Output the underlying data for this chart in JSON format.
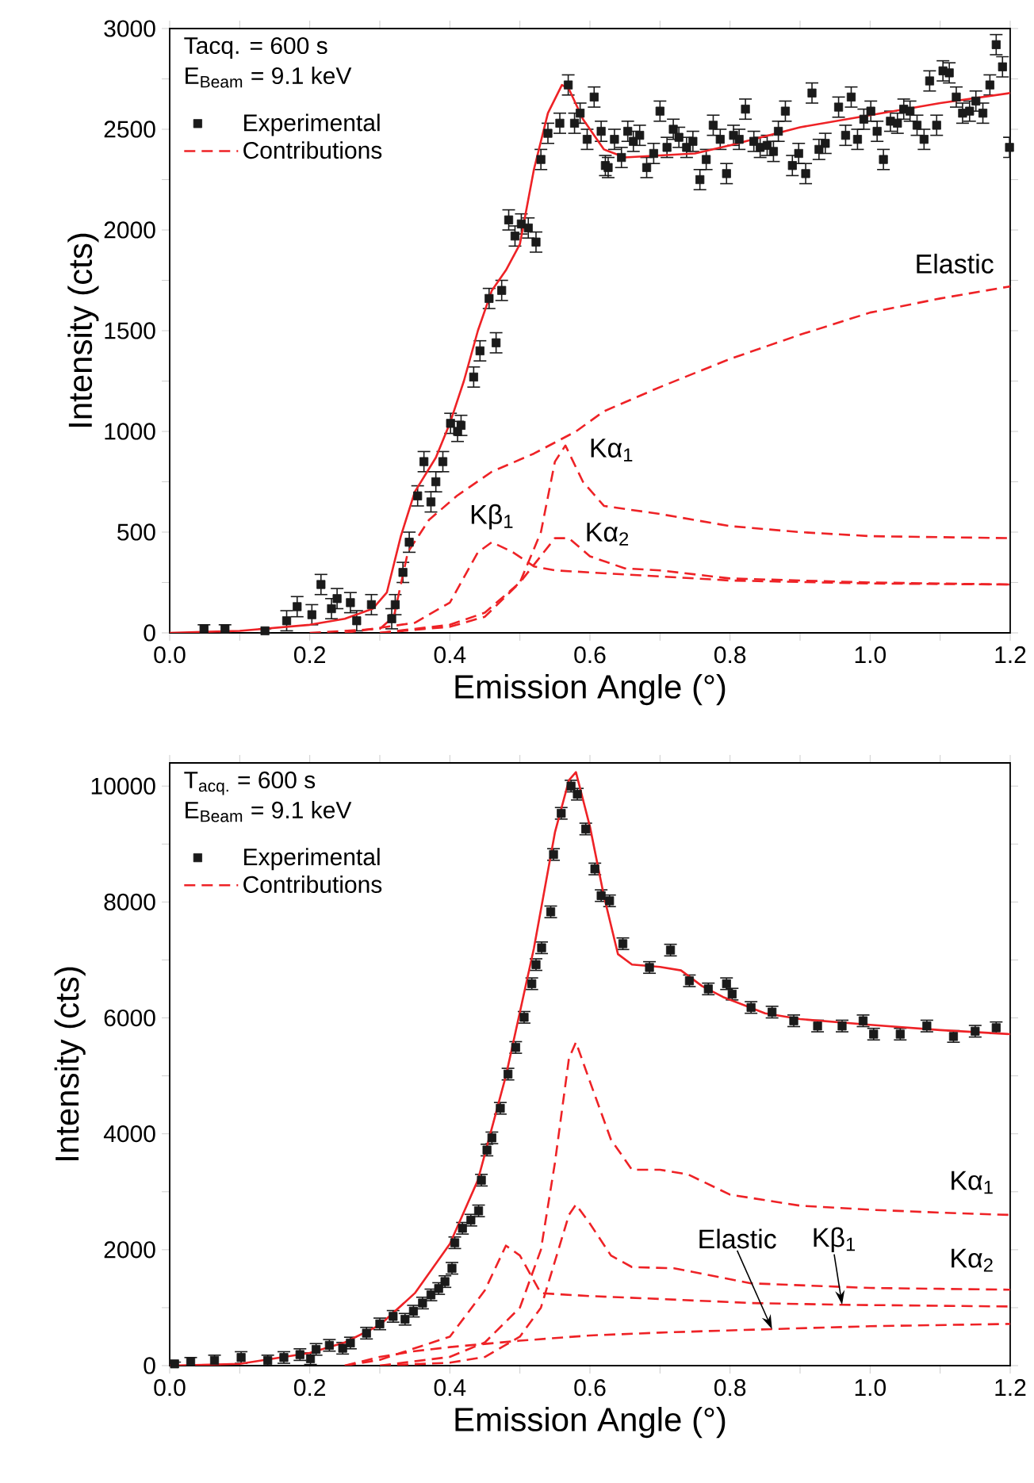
{
  "chart_data": [
    {
      "type": "line",
      "xlabel": "Emission Angle (°)",
      "ylabel": "Intensity (cts)",
      "xlim": [
        0,
        1.2
      ],
      "ylim": [
        0,
        3000
      ],
      "xticks": [
        {
          "value": 0,
          "label": "0.0"
        },
        {
          "value": 0.1,
          "label": null
        },
        {
          "value": 0.2,
          "label": "0.2"
        },
        {
          "value": 0.3,
          "label": null
        },
        {
          "value": 0.4,
          "label": "0.4"
        },
        {
          "value": 0.5,
          "label": null
        },
        {
          "value": 0.6,
          "label": "0.6"
        },
        {
          "value": 0.7,
          "label": null
        },
        {
          "value": 0.8,
          "label": "0.8"
        },
        {
          "value": 0.9,
          "label": null
        },
        {
          "value": 1.0,
          "label": "1.0"
        },
        {
          "value": 1.1,
          "label": null
        },
        {
          "value": 1.2,
          "label": "1.2"
        }
      ],
      "yticks": [
        0,
        {
          "value": 250,
          "label": null
        },
        500,
        {
          "value": 750,
          "label": null
        },
        1000,
        {
          "value": 1250,
          "label": null
        },
        1500,
        {
          "value": 1750,
          "label": null
        },
        2000,
        {
          "value": 2250,
          "label": null
        },
        2500,
        {
          "value": 2750,
          "label": null
        },
        3000
      ],
      "legend": "top left",
      "annotations": [
        "Tacq. = 600 s",
        "E$_{Beam}$ = 9.1 keV",
        {
          "text": "Elastic",
          "x": 1.1,
          "y": 1660
        },
        {
          "text": "Kα$_{1}$",
          "x": 0.59,
          "y": 750
        },
        {
          "text": "Kβ$_{1}$",
          "x": 0.46,
          "y": 450
        },
        {
          "text": "Kα$_{2}$",
          "x": 0.6,
          "y": 380
        }
      ],
      "series": [
        {
          "name": "Experimental",
          "type": "scatter",
          "marker": "square",
          "color": "#1a1a1a",
          "x": [
            0.049,
            0.079,
            0.136,
            0.167,
            0.182,
            0.203,
            0.216,
            0.231,
            0.239,
            0.258,
            0.267,
            0.288,
            0.317,
            0.322,
            0.333,
            0.342,
            0.354,
            0.363,
            0.373,
            0.38,
            0.39,
            0.401,
            0.411,
            0.416,
            0.434,
            0.443,
            0.456,
            0.466,
            0.474,
            0.484,
            0.493,
            0.502,
            0.512,
            0.523,
            0.53,
            0.54,
            0.557,
            0.569,
            0.578,
            0.586,
            0.596,
            0.606,
            0.616,
            0.622,
            0.626,
            0.635,
            0.645,
            0.654,
            0.662,
            0.671,
            0.681,
            0.691,
            0.7,
            0.71,
            0.719,
            0.727,
            0.738,
            0.747,
            0.757,
            0.766,
            0.776,
            0.786,
            0.795,
            0.805,
            0.813,
            0.822,
            0.834,
            0.843,
            0.853,
            0.862,
            0.869,
            0.879,
            0.889,
            0.898,
            0.908,
            0.917,
            0.927,
            0.936,
            0.955,
            0.965,
            0.973,
            0.982,
            0.991,
            1.001,
            1.01,
            1.019,
            1.029,
            1.039,
            1.048,
            1.057,
            1.067,
            1.077,
            1.085,
            1.095,
            1.104,
            1.113,
            1.123,
            1.132,
            1.142,
            1.151,
            1.161,
            1.171,
            1.18,
            1.189,
            1.199
          ],
          "values": [
            20,
            20,
            10,
            60,
            130,
            90,
            240,
            120,
            170,
            150,
            60,
            140,
            70,
            140,
            300,
            450,
            680,
            850,
            650,
            750,
            850,
            1040,
            1000,
            1030,
            1270,
            1400,
            1660,
            1440,
            1700,
            2050,
            1970,
            2030,
            2010,
            1940,
            2350,
            2480,
            2530,
            2720,
            2530,
            2580,
            2450,
            2660,
            2490,
            2320,
            2310,
            2450,
            2360,
            2490,
            2440,
            2470,
            2310,
            2380,
            2590,
            2410,
            2500,
            2460,
            2410,
            2440,
            2250,
            2350,
            2520,
            2450,
            2280,
            2470,
            2450,
            2600,
            2440,
            2410,
            2420,
            2390,
            2490,
            2590,
            2320,
            2380,
            2280,
            2680,
            2400,
            2430,
            2610,
            2470,
            2660,
            2450,
            2550,
            2590,
            2490,
            2350,
            2540,
            2530,
            2600,
            2590,
            2520,
            2450,
            2740,
            2520,
            2790,
            2780,
            2660,
            2580,
            2590,
            2640,
            2580,
            2720,
            2920,
            2810,
            2410
          ],
          "errors": [
            20,
            20,
            10,
            50,
            50,
            50,
            50,
            50,
            50,
            50,
            50,
            50,
            50,
            50,
            50,
            50,
            50,
            50,
            50,
            50,
            50,
            50,
            50,
            50,
            50,
            50,
            50,
            50,
            50,
            50,
            50,
            50,
            50,
            50,
            50,
            50,
            50,
            50,
            50,
            50,
            50,
            50,
            50,
            50,
            50,
            50,
            50,
            50,
            50,
            50,
            50,
            50,
            50,
            50,
            50,
            50,
            50,
            50,
            50,
            50,
            50,
            50,
            50,
            50,
            50,
            50,
            50,
            50,
            50,
            50,
            50,
            50,
            50,
            50,
            50,
            50,
            50,
            50,
            50,
            50,
            50,
            50,
            50,
            50,
            50,
            50,
            50,
            50,
            50,
            50,
            50,
            50,
            50,
            50,
            50,
            50,
            50,
            50,
            50,
            50,
            50,
            50,
            50,
            50,
            50
          ]
        },
        {
          "marker": "none",
          "line_style": "solid",
          "color": "#ee2226",
          "x": [
            0,
            0.1,
            0.2,
            0.25,
            0.29,
            0.31,
            0.33,
            0.35,
            0.38,
            0.4,
            0.42,
            0.44,
            0.46,
            0.48,
            0.5,
            0.52,
            0.54,
            0.56,
            0.57,
            0.59,
            0.62,
            0.65,
            0.7,
            0.75,
            0.8,
            0.9,
            1.0,
            1.1,
            1.2
          ],
          "values": [
            0,
            10,
            40,
            70,
            120,
            200,
            480,
            700,
            870,
            1040,
            1250,
            1500,
            1700,
            1800,
            1930,
            2300,
            2580,
            2720,
            2700,
            2550,
            2400,
            2360,
            2370,
            2380,
            2420,
            2510,
            2570,
            2630,
            2680
          ]
        },
        {
          "name": "Contributions",
          "marker": "none",
          "line_style": "dashed",
          "color": "#ee2226",
          "x": [
            0.2,
            0.3,
            0.32,
            0.34,
            0.37,
            0.41,
            0.46,
            0.52,
            0.58,
            0.62,
            0.7,
            0.8,
            0.9,
            1.0,
            1.1,
            1.2
          ],
          "values": [
            0,
            20,
            80,
            400,
            560,
            680,
            800,
            890,
            1000,
            1100,
            1220,
            1360,
            1480,
            1590,
            1660,
            1720
          ]
        },
        {
          "marker": "none",
          "line_style": "dashed",
          "color": "#ee2226",
          "x": [
            0.3,
            0.4,
            0.45,
            0.5,
            0.53,
            0.55,
            0.565,
            0.59,
            0.62,
            0.7,
            0.8,
            0.9,
            1.0,
            1.2
          ],
          "values": [
            0,
            30,
            80,
            250,
            500,
            850,
            930,
            750,
            630,
            590,
            530,
            500,
            480,
            470
          ]
        },
        {
          "marker": "none",
          "line_style": "dashed",
          "color": "#ee2226",
          "x": [
            0.25,
            0.35,
            0.4,
            0.44,
            0.46,
            0.49,
            0.52,
            0.55,
            0.6,
            0.7,
            0.8,
            1.0,
            1.2
          ],
          "values": [
            0,
            50,
            150,
            400,
            450,
            400,
            330,
            310,
            300,
            280,
            260,
            245,
            240
          ]
        },
        {
          "marker": "none",
          "line_style": "dashed",
          "color": "#ee2226",
          "x": [
            0.3,
            0.4,
            0.45,
            0.5,
            0.55,
            0.57,
            0.6,
            0.65,
            0.7,
            0.8,
            1.0,
            1.2
          ],
          "values": [
            0,
            40,
            100,
            250,
            470,
            470,
            380,
            320,
            310,
            270,
            250,
            240
          ]
        }
      ]
    },
    {
      "type": "line",
      "xlabel": "Emission Angle (°)",
      "ylabel": "Intensity (cts)",
      "xlim": [
        0,
        1.2
      ],
      "ylim": [
        0,
        10400
      ],
      "xticks": [
        {
          "value": 0,
          "label": "0.0"
        },
        {
          "value": 0.1,
          "label": null
        },
        {
          "value": 0.2,
          "label": "0.2"
        },
        {
          "value": 0.3,
          "label": null
        },
        {
          "value": 0.4,
          "label": "0.4"
        },
        {
          "value": 0.5,
          "label": null
        },
        {
          "value": 0.6,
          "label": "0.6"
        },
        {
          "value": 0.7,
          "label": null
        },
        {
          "value": 0.8,
          "label": "0.8"
        },
        {
          "value": 0.9,
          "label": null
        },
        {
          "value": 1.0,
          "label": "1.0"
        },
        {
          "value": 1.1,
          "label": null
        },
        {
          "value": 1.2,
          "label": "1.2"
        }
      ],
      "yticks": [
        0,
        {
          "value": 1000,
          "label": null
        },
        2000,
        {
          "value": 3000,
          "label": null
        },
        4000,
        {
          "value": 5000,
          "label": null
        },
        6000,
        {
          "value": 7000,
          "label": null
        },
        8000,
        {
          "value": 9000,
          "label": null
        },
        10000
      ],
      "legend": "top left",
      "annotations": [
        "T$_{acq.}$ = 600 s",
        "E$_{Beam}$ = 9.1 keV",
        {
          "text": "Kα$_{1}$",
          "x": 1.1,
          "y": 2640
        },
        {
          "text": "Kα$_{2}$",
          "x": 1.1,
          "y": 1325
        },
        {
          "text": "Elastic",
          "x": 0.86,
          "y": 630
        },
        {
          "text": "Kβ$_{1}$",
          "x": 0.96,
          "y": 1050
        }
      ],
      "series": [
        {
          "name": "Experimental",
          "type": "scatter",
          "marker": "square",
          "color": "#1a1a1a",
          "x": [
            0.007,
            0.03,
            0.064,
            0.102,
            0.14,
            0.163,
            0.186,
            0.201,
            0.209,
            0.228,
            0.247,
            0.258,
            0.281,
            0.3,
            0.319,
            0.336,
            0.348,
            0.361,
            0.373,
            0.384,
            0.393,
            0.403,
            0.407,
            0.418,
            0.43,
            0.441,
            0.445,
            0.453,
            0.46,
            0.472,
            0.483,
            0.494,
            0.506,
            0.517,
            0.523,
            0.531,
            0.544,
            0.548,
            0.559,
            0.573,
            0.582,
            0.594,
            0.607,
            0.616,
            0.628,
            0.647,
            0.685,
            0.715,
            0.742,
            0.769,
            0.795,
            0.803,
            0.83,
            0.86,
            0.891,
            0.925,
            0.96,
            0.99,
            1.005,
            1.043,
            1.081,
            1.119,
            1.15,
            1.18
          ],
          "values": [
            30,
            70,
            90,
            140,
            90,
            140,
            190,
            120,
            280,
            350,
            300,
            390,
            560,
            720,
            850,
            800,
            940,
            1080,
            1220,
            1330,
            1450,
            1680,
            2120,
            2370,
            2510,
            2670,
            3200,
            3720,
            3930,
            4440,
            5030,
            5490,
            6010,
            6590,
            6920,
            7210,
            7830,
            8820,
            9530,
            10000,
            9860,
            9260,
            8570,
            8110,
            8020,
            7280,
            6870,
            7170,
            6640,
            6500,
            6590,
            6410,
            6180,
            6100,
            5950,
            5860,
            5860,
            5950,
            5720,
            5720,
            5860,
            5680,
            5770,
            5830
          ],
          "errors": [
            30,
            70,
            90,
            100,
            90,
            100,
            100,
            100,
            100,
            100,
            100,
            100,
            100,
            100,
            100,
            100,
            100,
            100,
            100,
            100,
            100,
            100,
            100,
            100,
            100,
            100,
            100,
            100,
            100,
            100,
            100,
            100,
            100,
            100,
            100,
            100,
            100,
            100,
            100,
            100,
            100,
            100,
            100,
            100,
            100,
            100,
            100,
            100,
            100,
            100,
            100,
            100,
            100,
            100,
            100,
            100,
            100,
            100,
            100,
            100,
            100,
            100,
            100,
            100
          ]
        },
        {
          "marker": "none",
          "line_style": "solid",
          "color": "#ee2226",
          "x": [
            0,
            0.1,
            0.2,
            0.25,
            0.3,
            0.35,
            0.4,
            0.44,
            0.48,
            0.52,
            0.55,
            0.57,
            0.58,
            0.6,
            0.62,
            0.64,
            0.66,
            0.7,
            0.73,
            0.76,
            0.79,
            0.85,
            0.9,
            1.0,
            1.1,
            1.2
          ],
          "values": [
            0,
            30,
            220,
            400,
            700,
            1250,
            2100,
            3200,
            5000,
            7200,
            9200,
            10100,
            10240,
            9300,
            8100,
            7100,
            6920,
            6880,
            6820,
            6550,
            6360,
            6080,
            5980,
            5880,
            5790,
            5720
          ]
        },
        {
          "name": "Contributions",
          "marker": "none",
          "line_style": "dashed",
          "color": "#ee2226",
          "x": [
            0.25,
            0.3,
            0.35,
            0.4,
            0.5,
            0.6,
            0.7,
            0.86,
            1.0,
            1.2
          ],
          "values": [
            0,
            150,
            250,
            320,
            430,
            520,
            570,
            630,
            680,
            720
          ]
        },
        {
          "marker": "none",
          "line_style": "dashed",
          "color": "#ee2226",
          "x": [
            0.3,
            0.4,
            0.45,
            0.5,
            0.53,
            0.55,
            0.57,
            0.58,
            0.6,
            0.63,
            0.66,
            0.7,
            0.74,
            0.8,
            0.9,
            1.0,
            1.1,
            1.2
          ],
          "values": [
            0,
            150,
            400,
            1000,
            2000,
            3500,
            5300,
            5580,
            4900,
            3900,
            3380,
            3380,
            3300,
            2950,
            2760,
            2690,
            2640,
            2600
          ]
        },
        {
          "marker": "none",
          "line_style": "dashed",
          "color": "#ee2226",
          "x": [
            0.25,
            0.3,
            0.4,
            0.45,
            0.48,
            0.5,
            0.53,
            0.6,
            0.7,
            0.83,
            0.96,
            1.2
          ],
          "values": [
            0,
            100,
            500,
            1300,
            2070,
            1900,
            1250,
            1200,
            1150,
            1080,
            1050,
            1020
          ]
        },
        {
          "marker": "none",
          "line_style": "dashed",
          "color": "#ee2226",
          "x": [
            0.3,
            0.4,
            0.45,
            0.5,
            0.53,
            0.55,
            0.57,
            0.58,
            0.6,
            0.63,
            0.66,
            0.72,
            0.83,
            1.0,
            1.1,
            1.2
          ],
          "values": [
            0,
            50,
            150,
            500,
            1000,
            1800,
            2600,
            2780,
            2450,
            1900,
            1700,
            1680,
            1420,
            1340,
            1325,
            1310
          ]
        }
      ]
    }
  ]
}
